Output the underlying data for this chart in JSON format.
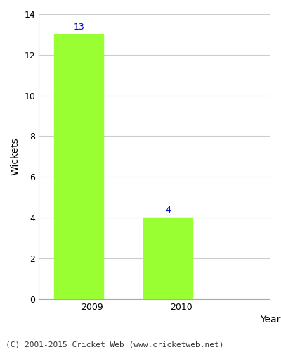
{
  "categories": [
    "2009",
    "2010"
  ],
  "values": [
    13,
    4
  ],
  "bar_color": "#99ff33",
  "bar_edgecolor": "#99ff33",
  "ylabel": "Wickets",
  "xlabel": "Year",
  "ylim": [
    0,
    14
  ],
  "yticks": [
    0,
    2,
    4,
    6,
    8,
    10,
    12,
    14
  ],
  "label_color": "#0000cc",
  "label_fontsize": 9,
  "axis_label_fontsize": 10,
  "tick_fontsize": 9,
  "footer_text": "(C) 2001-2015 Cricket Web (www.cricketweb.net)",
  "footer_fontsize": 8,
  "background_color": "#ffffff",
  "grid_color": "#cccccc",
  "bar_width": 0.55
}
